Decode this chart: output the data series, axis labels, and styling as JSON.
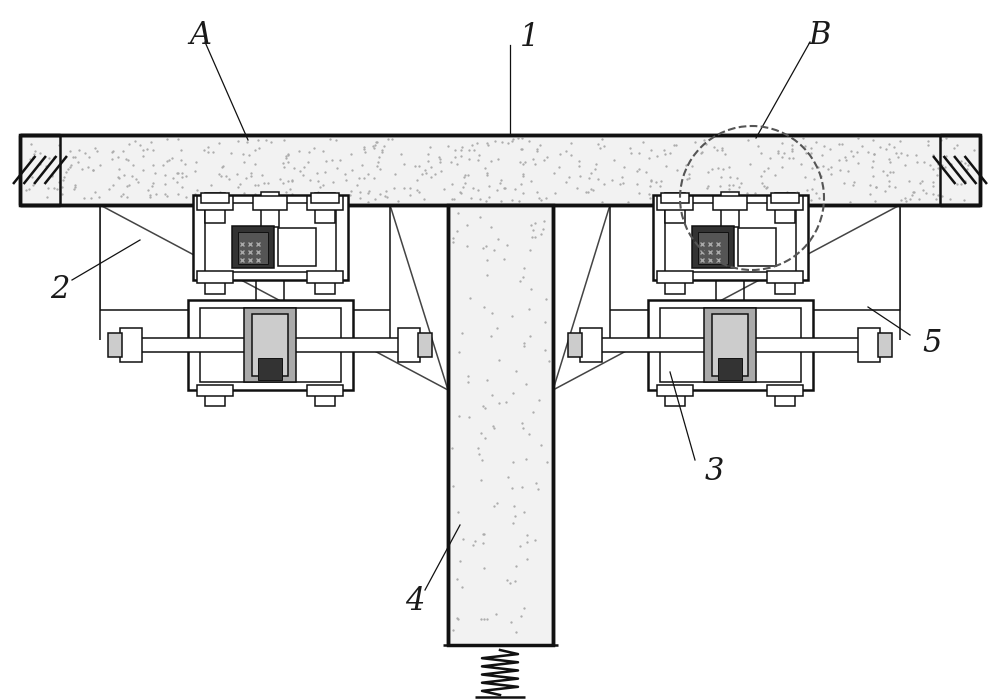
{
  "bg_color": "#ffffff",
  "lc": "#111111",
  "fill_slab": "#f2f2f2",
  "fill_col": "#f2f2f2",
  "fill_white": "#ffffff",
  "fill_dark": "#333333",
  "fill_med": "#888888",
  "fill_light_gray": "#cccccc",
  "dot_color": "#aaaaaa",
  "label_A": "A",
  "label_B": "B",
  "label_1": "1",
  "label_2": "2",
  "label_3": "3",
  "label_4": "4",
  "label_5": "5",
  "font_size": 22,
  "fig_width": 10.0,
  "fig_height": 7.0,
  "dpi": 100
}
